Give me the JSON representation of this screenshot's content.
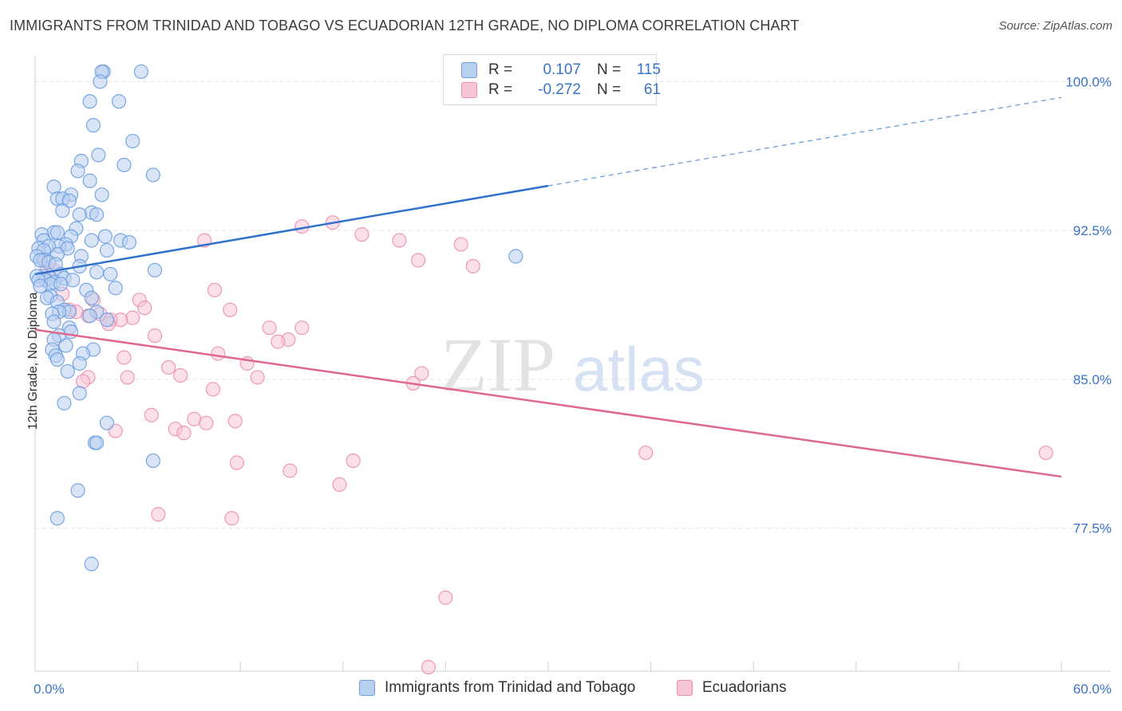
{
  "title": "IMMIGRANTS FROM TRINIDAD AND TOBAGO VS ECUADORIAN 12TH GRADE, NO DIPLOMA CORRELATION CHART",
  "source": "Source: ZipAtlas.com",
  "watermark": {
    "zip": "ZIP",
    "atlas": "atlas"
  },
  "colors": {
    "blue": "#6a9fe0",
    "blue_fill": "#b9d0f1",
    "blue_line": "#2e72cc",
    "pink": "#ec8fb0",
    "pink_fill": "#f7c6d6",
    "pink_line": "#e0678f",
    "tick_label": "#3a74c6",
    "grid": "#e3e3e3"
  },
  "legend_top": [
    {
      "r_label": "R =",
      "r_value": "0.107",
      "n_label": "N =",
      "n_value": "115",
      "color": "blue"
    },
    {
      "r_label": "R =",
      "r_value": "-0.272",
      "n_label": "N =",
      "n_value": "61",
      "color": "pink"
    }
  ],
  "legend_bottom": [
    {
      "label": "Immigrants from Trinidad and Tobago",
      "color": "blue"
    },
    {
      "label": "Ecuadorians",
      "color": "pink"
    }
  ],
  "chart_data": {
    "type": "scatter",
    "title": "IMMIGRANTS FROM TRINIDAD AND TOBAGO VS ECUADORIAN 12TH GRADE, NO DIPLOMA CORRELATION CHART",
    "xlabel": "",
    "ylabel": "12th Grade, No Diploma",
    "xlim": [
      0,
      60
    ],
    "ylim": [
      70.3,
      101.3
    ],
    "x_tick_labels": [
      "0.0%",
      "60.0%"
    ],
    "y_ticks": [
      77.5,
      85.0,
      92.5,
      100.0
    ],
    "y_tick_labels": [
      "77.5%",
      "85.0%",
      "92.5%",
      "100.0%"
    ],
    "grid": true,
    "legend_placement": "top-center",
    "series": [
      {
        "name": "Immigrants from Trinidad and Tobago",
        "color": "blue",
        "trend": {
          "x": [
            0,
            30,
            60
          ],
          "y": [
            90.3,
            94.8,
            99.2
          ],
          "solid_until_x": 30
        },
        "points": [
          [
            4.0,
            100.5
          ],
          [
            3.9,
            100.5
          ],
          [
            6.2,
            100.5
          ],
          [
            3.8,
            100.0
          ],
          [
            3.2,
            99.0
          ],
          [
            4.9,
            99.0
          ],
          [
            3.4,
            97.8
          ],
          [
            5.7,
            97.0
          ],
          [
            3.7,
            96.3
          ],
          [
            2.7,
            96.0
          ],
          [
            5.2,
            95.8
          ],
          [
            2.5,
            95.5
          ],
          [
            6.9,
            95.3
          ],
          [
            3.2,
            95.0
          ],
          [
            1.1,
            94.7
          ],
          [
            3.9,
            94.3
          ],
          [
            2.1,
            94.3
          ],
          [
            1.3,
            94.1
          ],
          [
            1.6,
            94.1
          ],
          [
            2.0,
            94.0
          ],
          [
            1.6,
            93.5
          ],
          [
            3.3,
            93.4
          ],
          [
            2.6,
            93.3
          ],
          [
            3.6,
            93.3
          ],
          [
            2.4,
            92.6
          ],
          [
            1.1,
            92.4
          ],
          [
            1.3,
            92.4
          ],
          [
            0.4,
            92.3
          ],
          [
            4.1,
            92.2
          ],
          [
            2.1,
            92.2
          ],
          [
            5.0,
            92.0
          ],
          [
            3.3,
            92.0
          ],
          [
            0.5,
            92.0
          ],
          [
            5.5,
            91.9
          ],
          [
            1.8,
            91.8
          ],
          [
            1.4,
            91.7
          ],
          [
            0.8,
            91.7
          ],
          [
            1.9,
            91.6
          ],
          [
            0.2,
            91.6
          ],
          [
            0.5,
            91.5
          ],
          [
            4.2,
            91.5
          ],
          [
            1.3,
            91.3
          ],
          [
            2.7,
            91.2
          ],
          [
            0.1,
            91.2
          ],
          [
            0.5,
            91.0
          ],
          [
            0.3,
            91.0
          ],
          [
            0.8,
            90.9
          ],
          [
            1.2,
            90.8
          ],
          [
            2.6,
            90.7
          ],
          [
            7.0,
            90.5
          ],
          [
            3.6,
            90.4
          ],
          [
            4.4,
            90.3
          ],
          [
            1.5,
            90.3
          ],
          [
            0.5,
            90.2
          ],
          [
            0.1,
            90.2
          ],
          [
            0.9,
            90.1
          ],
          [
            1.7,
            90.1
          ],
          [
            0.6,
            90.0
          ],
          [
            0.2,
            90.0
          ],
          [
            2.2,
            90.0
          ],
          [
            1.1,
            89.9
          ],
          [
            0.9,
            89.8
          ],
          [
            1.5,
            89.8
          ],
          [
            0.3,
            89.7
          ],
          [
            4.7,
            89.6
          ],
          [
            3.0,
            89.5
          ],
          [
            0.9,
            89.2
          ],
          [
            0.7,
            89.1
          ],
          [
            3.3,
            89.1
          ],
          [
            1.3,
            88.9
          ],
          [
            1.7,
            88.5
          ],
          [
            2.0,
            88.4
          ],
          [
            3.6,
            88.4
          ],
          [
            1.4,
            88.4
          ],
          [
            1.0,
            88.3
          ],
          [
            3.2,
            88.2
          ],
          [
            4.2,
            88.0
          ],
          [
            1.1,
            87.9
          ],
          [
            2.0,
            87.6
          ],
          [
            2.1,
            87.4
          ],
          [
            1.4,
            87.2
          ],
          [
            1.1,
            87.0
          ],
          [
            1.8,
            86.7
          ],
          [
            1.0,
            86.5
          ],
          [
            3.4,
            86.5
          ],
          [
            2.8,
            86.3
          ],
          [
            1.2,
            86.2
          ],
          [
            1.3,
            86.0
          ],
          [
            2.6,
            85.8
          ],
          [
            1.9,
            85.4
          ],
          [
            2.6,
            84.3
          ],
          [
            1.7,
            83.8
          ],
          [
            4.2,
            82.8
          ],
          [
            3.5,
            81.8
          ],
          [
            3.6,
            81.8
          ],
          [
            6.9,
            80.9
          ],
          [
            2.5,
            79.4
          ],
          [
            1.3,
            78.0
          ],
          [
            3.3,
            75.7
          ],
          [
            28.1,
            91.2
          ]
        ]
      },
      {
        "name": "Ecuadorians",
        "color": "pink",
        "trend": {
          "x": [
            0,
            60
          ],
          "y": [
            87.5,
            80.1
          ]
        },
        "points": [
          [
            0.6,
            91.0
          ],
          [
            0.7,
            90.6
          ],
          [
            1.1,
            90.5
          ],
          [
            1.6,
            89.3
          ],
          [
            3.4,
            89.0
          ],
          [
            6.1,
            89.0
          ],
          [
            6.4,
            88.6
          ],
          [
            2.4,
            88.4
          ],
          [
            3.8,
            88.3
          ],
          [
            3.1,
            88.2
          ],
          [
            5.7,
            88.1
          ],
          [
            5.0,
            88.0
          ],
          [
            4.4,
            88.0
          ],
          [
            2.0,
            88.5
          ],
          [
            4.3,
            87.8
          ],
          [
            7.0,
            87.2
          ],
          [
            10.5,
            89.5
          ],
          [
            11.4,
            88.5
          ],
          [
            15.6,
            87.6
          ],
          [
            13.7,
            87.6
          ],
          [
            14.8,
            87.0
          ],
          [
            14.2,
            86.9
          ],
          [
            10.7,
            86.3
          ],
          [
            5.2,
            86.1
          ],
          [
            7.8,
            85.6
          ],
          [
            12.4,
            85.8
          ],
          [
            8.5,
            85.2
          ],
          [
            5.4,
            85.1
          ],
          [
            3.1,
            85.1
          ],
          [
            2.8,
            84.9
          ],
          [
            13.0,
            85.1
          ],
          [
            22.6,
            85.3
          ],
          [
            22.1,
            84.8
          ],
          [
            10.4,
            84.5
          ],
          [
            9.3,
            83.0
          ],
          [
            10.0,
            82.8
          ],
          [
            8.2,
            82.5
          ],
          [
            6.8,
            83.2
          ],
          [
            4.7,
            82.4
          ],
          [
            8.7,
            82.3
          ],
          [
            11.7,
            82.9
          ],
          [
            9.9,
            92.0
          ],
          [
            15.6,
            92.7
          ],
          [
            17.4,
            92.9
          ],
          [
            19.1,
            92.3
          ],
          [
            21.3,
            92.0
          ],
          [
            24.9,
            91.8
          ],
          [
            25.6,
            90.7
          ],
          [
            22.4,
            91.0
          ],
          [
            11.8,
            80.8
          ],
          [
            14.9,
            80.4
          ],
          [
            18.6,
            80.9
          ],
          [
            17.8,
            79.7
          ],
          [
            7.2,
            78.2
          ],
          [
            11.5,
            78.0
          ],
          [
            35.7,
            81.3
          ],
          [
            59.1,
            81.3
          ],
          [
            24.0,
            74.0
          ],
          [
            23.0,
            70.5
          ]
        ]
      }
    ]
  }
}
